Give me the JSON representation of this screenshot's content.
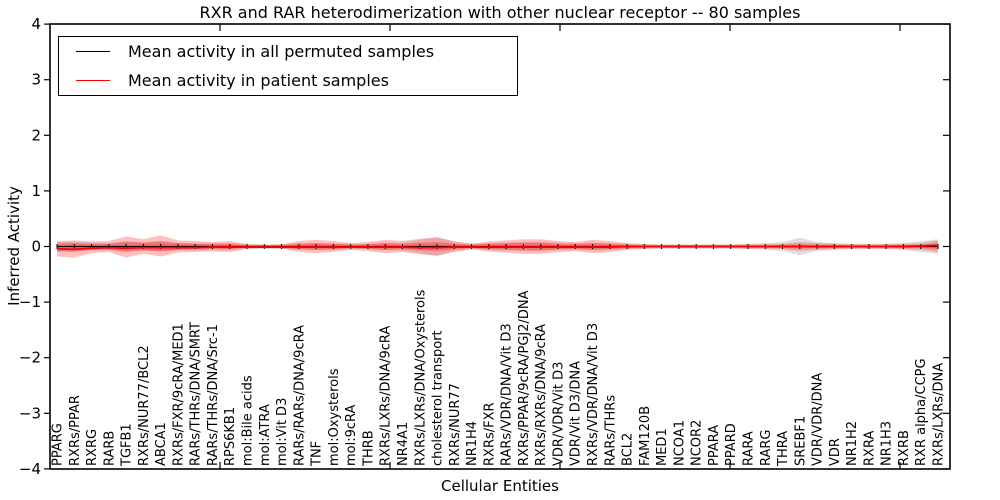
{
  "figure": {
    "title": "RXR and RAR heterodimerization with other nuclear receptor -- 80 samples",
    "xlabel": "Cellular Entities",
    "ylabel": "Inferred Activity",
    "legend": [
      {
        "label": "Mean activity in all permuted samples",
        "color": "#000000"
      },
      {
        "label": "Mean activity in patient samples",
        "color": "#ff0000"
      }
    ]
  },
  "chart_data": {
    "type": "line",
    "title": "RXR and RAR heterodimerization with other nuclear receptor -- 80 samples",
    "xlabel": "Cellular Entities",
    "ylabel": "Inferred Activity",
    "ylim": [
      -4,
      4
    ],
    "yticks": [
      -4,
      -3,
      -2,
      -1,
      0,
      1,
      2,
      3,
      4
    ],
    "ytick_labels": [
      "−4",
      "−3",
      "−2",
      "−1",
      "0",
      "1",
      "2",
      "3",
      "4"
    ],
    "xticks": [
      10,
      20,
      30,
      40,
      50
    ],
    "grid": false,
    "legend_position": "upper left",
    "categories": [
      "PPARG",
      "RXRs/PPAR",
      "RXRG",
      "RARB",
      "TGFB1",
      "RXRs/NUR77/BCL2",
      "ABCA1",
      "RXRs/FXR/9cRA/MED1",
      "RARs/THRs/DNA/SMRT",
      "RARs/THRs/DNA/Src-1",
      "RPS6KB1",
      "mol:Bile acids",
      "mol:ATRA",
      "mol:Vit D3",
      "RARs/RARs/DNA/9cRA",
      "TNF",
      "mol:Oxysterols",
      "mol:9cRA",
      "THRB",
      "RXRs/LXRs/DNA/9cRA",
      "NR4A1",
      "RXRs/LXRs/DNA/Oxysterols",
      "cholesterol transport",
      "RXRs/NUR77",
      "NR1H4",
      "RXRs/FXR",
      "RARs/VDR/DNA/Vit D3",
      "RXRs/PPAR/9cRA/PGJ2/DNA",
      "RXRs/RXRs/DNA/9cRA",
      "VDR/VDR/Vit D3",
      "VDR/Vit D3/DNA",
      "RXRs/VDR/DNA/Vit D3",
      "RARs/THRs",
      "BCL2",
      "FAM120B",
      "MED1",
      "NCOA1",
      "NCOR2",
      "PPARA",
      "PPARD",
      "RARA",
      "RARG",
      "THRA",
      "SREBF1",
      "VDR/VDR/DNA",
      "VDR",
      "NR1H2",
      "RXRA",
      "NR1H3",
      "RXRB",
      "RXR alpha/CCPG",
      "RXRs/LXRs/DNA"
    ],
    "series": [
      {
        "name": "Mean activity in all permuted samples",
        "color": "#000000",
        "marker": "plus",
        "width": 1.2,
        "values": [
          0,
          0,
          0,
          0,
          0,
          0,
          0,
          0,
          0,
          0,
          0,
          0,
          0,
          0,
          0,
          0,
          0,
          0,
          0,
          0,
          0,
          0,
          0,
          0,
          0,
          0,
          0,
          0,
          0,
          0,
          0,
          0,
          0,
          0,
          0,
          0,
          0,
          0,
          0,
          0,
          0,
          0,
          0,
          0,
          0,
          0,
          0,
          0,
          0,
          0,
          0,
          0
        ]
      },
      {
        "name": "Mean activity in patient samples",
        "color": "#ff0000",
        "marker": "none",
        "width": 1.8,
        "values": [
          -0.04,
          -0.05,
          -0.03,
          -0.02,
          -0.03,
          -0.02,
          -0.02,
          -0.02,
          -0.02,
          -0.01,
          -0.01,
          -0.01,
          -0.01,
          -0.01,
          -0.01,
          -0.01,
          -0.01,
          -0.01,
          -0.01,
          -0.01,
          -0.01,
          -0.02,
          -0.02,
          -0.01,
          -0.01,
          -0.01,
          -0.01,
          -0.01,
          -0.01,
          -0.01,
          -0.01,
          -0.01,
          -0.01,
          0,
          0,
          0,
          0,
          0,
          0,
          0,
          0,
          0,
          0,
          0,
          0,
          0,
          0,
          0,
          0,
          0,
          0.01,
          0.02
        ]
      }
    ],
    "bands": [
      {
        "name": "permuted-range",
        "color": "#000000",
        "opacity": 0.12,
        "upper": [
          0.08,
          0.08,
          0.07,
          0.06,
          0.08,
          0.07,
          0.08,
          0.06,
          0.06,
          0.06,
          0.06,
          0.05,
          0.04,
          0.04,
          0.06,
          0.06,
          0.06,
          0.05,
          0.05,
          0.07,
          0.07,
          0.12,
          0.18,
          0.08,
          0.05,
          0.06,
          0.07,
          0.08,
          0.08,
          0.07,
          0.06,
          0.07,
          0.06,
          0.05,
          0.05,
          0.04,
          0.04,
          0.04,
          0.04,
          0.04,
          0.05,
          0.06,
          0.08,
          0.16,
          0.08,
          0.06,
          0.05,
          0.05,
          0.05,
          0.06,
          0.1,
          0.13
        ],
        "lower": [
          -0.08,
          -0.08,
          -0.07,
          -0.06,
          -0.08,
          -0.07,
          -0.08,
          -0.06,
          -0.06,
          -0.06,
          -0.06,
          -0.05,
          -0.04,
          -0.04,
          -0.06,
          -0.06,
          -0.06,
          -0.05,
          -0.05,
          -0.07,
          -0.07,
          -0.12,
          -0.18,
          -0.08,
          -0.05,
          -0.06,
          -0.07,
          -0.08,
          -0.08,
          -0.07,
          -0.06,
          -0.07,
          -0.06,
          -0.05,
          -0.05,
          -0.04,
          -0.04,
          -0.04,
          -0.04,
          -0.04,
          -0.05,
          -0.06,
          -0.08,
          -0.16,
          -0.08,
          -0.06,
          -0.05,
          -0.05,
          -0.05,
          -0.06,
          -0.1,
          -0.13
        ]
      },
      {
        "name": "patient-range-outer",
        "color": "#ff0000",
        "opacity": 0.25,
        "upper": [
          0.1,
          0.11,
          0.09,
          0.1,
          0.18,
          0.13,
          0.2,
          0.11,
          0.1,
          0.08,
          0.1,
          0.04,
          0.03,
          0.04,
          0.1,
          0.12,
          0.1,
          0.06,
          0.08,
          0.12,
          0.1,
          0.14,
          0.16,
          0.1,
          0.05,
          0.09,
          0.11,
          0.13,
          0.13,
          0.1,
          0.08,
          0.12,
          0.1,
          0.06,
          0.04,
          0.03,
          0.03,
          0.03,
          0.03,
          0.03,
          0.04,
          0.04,
          0.05,
          0.08,
          0.06,
          0.05,
          0.04,
          0.04,
          0.04,
          0.05,
          0.06,
          0.11
        ],
        "lower": [
          -0.18,
          -0.2,
          -0.12,
          -0.1,
          -0.2,
          -0.13,
          -0.18,
          -0.11,
          -0.1,
          -0.08,
          -0.1,
          -0.04,
          -0.03,
          -0.04,
          -0.1,
          -0.12,
          -0.1,
          -0.06,
          -0.08,
          -0.12,
          -0.1,
          -0.14,
          -0.16,
          -0.1,
          -0.05,
          -0.09,
          -0.11,
          -0.13,
          -0.13,
          -0.1,
          -0.08,
          -0.12,
          -0.1,
          -0.06,
          -0.04,
          -0.03,
          -0.03,
          -0.03,
          -0.03,
          -0.03,
          -0.04,
          -0.04,
          -0.05,
          -0.08,
          -0.06,
          -0.05,
          -0.04,
          -0.04,
          -0.04,
          -0.05,
          -0.06,
          -0.1
        ]
      },
      {
        "name": "patient-range-inner",
        "color": "#ff0000",
        "opacity": 0.3,
        "upper": [
          0.05,
          0.06,
          0.05,
          0.05,
          0.09,
          0.07,
          0.1,
          0.06,
          0.05,
          0.04,
          0.05,
          0.02,
          0.02,
          0.02,
          0.05,
          0.06,
          0.05,
          0.03,
          0.04,
          0.06,
          0.05,
          0.07,
          0.08,
          0.05,
          0.03,
          0.05,
          0.06,
          0.07,
          0.07,
          0.05,
          0.04,
          0.06,
          0.05,
          0.03,
          0.02,
          0.02,
          0.02,
          0.02,
          0.02,
          0.02,
          0.02,
          0.02,
          0.03,
          0.04,
          0.03,
          0.03,
          0.02,
          0.02,
          0.02,
          0.03,
          0.03,
          0.06
        ],
        "lower": [
          -0.09,
          -0.1,
          -0.06,
          -0.05,
          -0.1,
          -0.07,
          -0.09,
          -0.06,
          -0.05,
          -0.04,
          -0.05,
          -0.02,
          -0.02,
          -0.02,
          -0.05,
          -0.06,
          -0.05,
          -0.03,
          -0.04,
          -0.06,
          -0.05,
          -0.07,
          -0.08,
          -0.05,
          -0.03,
          -0.05,
          -0.06,
          -0.07,
          -0.07,
          -0.05,
          -0.04,
          -0.06,
          -0.05,
          -0.03,
          -0.02,
          -0.02,
          -0.02,
          -0.02,
          -0.02,
          -0.02,
          -0.02,
          -0.02,
          -0.03,
          -0.04,
          -0.03,
          -0.03,
          -0.02,
          -0.02,
          -0.02,
          -0.03,
          -0.03,
          -0.05
        ]
      }
    ]
  }
}
